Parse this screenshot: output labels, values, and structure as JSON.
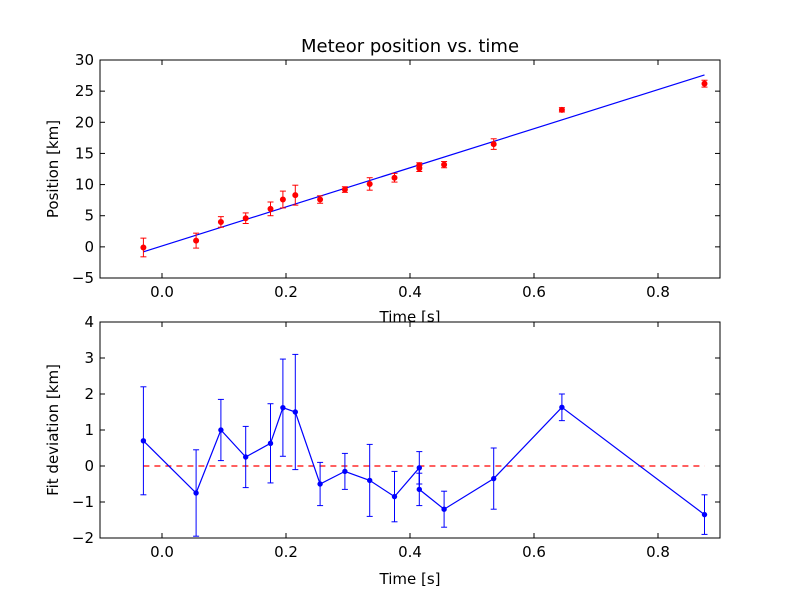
{
  "chart_data": [
    {
      "type": "scatter",
      "title": "Meteor position vs. time",
      "xlabel": "Time [s]",
      "ylabel": "Position [km]",
      "xlim": [
        -0.1,
        0.9
      ],
      "ylim": [
        -5,
        30
      ],
      "xticks": [
        0.0,
        0.2,
        0.4,
        0.6,
        0.8
      ],
      "xtick_labels": [
        "0.0",
        "0.2",
        "0.4",
        "0.6",
        "0.8"
      ],
      "yticks": [
        -5,
        0,
        5,
        10,
        15,
        20,
        25,
        30
      ],
      "ytick_labels": [
        "−5",
        "0",
        "5",
        "10",
        "15",
        "20",
        "25",
        "30"
      ],
      "grid": false,
      "colors": {
        "points": "#ff0000",
        "fit": "#0000ff"
      },
      "series": [
        {
          "kind": "points_with_errorbars",
          "x": [
            -0.03,
            0.055,
            0.095,
            0.135,
            0.175,
            0.195,
            0.215,
            0.255,
            0.295,
            0.335,
            0.375,
            0.415,
            0.415,
            0.455,
            0.535,
            0.645,
            0.875
          ],
          "y": [
            -0.1,
            1.0,
            4.0,
            4.6,
            6.1,
            7.6,
            8.3,
            7.6,
            9.2,
            10.1,
            11.1,
            12.6,
            13.1,
            13.2,
            16.5,
            22.0,
            26.2
          ],
          "yerr": [
            1.5,
            1.2,
            0.85,
            0.85,
            1.1,
            1.35,
            1.6,
            0.6,
            0.45,
            1.0,
            0.7,
            0.5,
            0.4,
            0.5,
            0.85,
            0.35,
            0.55
          ]
        },
        {
          "kind": "fit_line",
          "x": [
            -0.03,
            0.875
          ],
          "y": [
            -0.8,
            27.6
          ]
        }
      ]
    },
    {
      "type": "line",
      "title": "",
      "xlabel": "Time [s]",
      "ylabel": "Fit deviation [km]",
      "xlim": [
        -0.1,
        0.9
      ],
      "ylim": [
        -2,
        4
      ],
      "xticks": [
        0.0,
        0.2,
        0.4,
        0.6,
        0.8
      ],
      "xtick_labels": [
        "0.0",
        "0.2",
        "0.4",
        "0.6",
        "0.8"
      ],
      "yticks": [
        -2,
        -1,
        0,
        1,
        2,
        3,
        4
      ],
      "ytick_labels": [
        "−2",
        "−1",
        "0",
        "1",
        "2",
        "3",
        "4"
      ],
      "grid": false,
      "colors": {
        "deviation": "#0000ff",
        "zero": "#ff0000"
      },
      "series": [
        {
          "kind": "line_with_errorbars",
          "x": [
            -0.03,
            0.055,
            0.095,
            0.135,
            0.175,
            0.195,
            0.215,
            0.255,
            0.295,
            0.335,
            0.375,
            0.415,
            0.415,
            0.455,
            0.535,
            0.645,
            0.875
          ],
          "y": [
            0.7,
            -0.75,
            1.0,
            0.25,
            0.63,
            1.62,
            1.5,
            -0.5,
            -0.15,
            -0.4,
            -0.85,
            -0.05,
            -0.65,
            -1.2,
            -0.35,
            1.63,
            -1.35
          ],
          "yerr": [
            1.5,
            1.2,
            0.85,
            0.85,
            1.1,
            1.35,
            1.6,
            0.6,
            0.5,
            1.0,
            0.7,
            0.45,
            0.45,
            0.5,
            0.85,
            0.37,
            0.55
          ]
        },
        {
          "kind": "zero_line",
          "x": [
            -0.03,
            0.875
          ],
          "y": [
            0,
            0
          ]
        }
      ]
    }
  ]
}
